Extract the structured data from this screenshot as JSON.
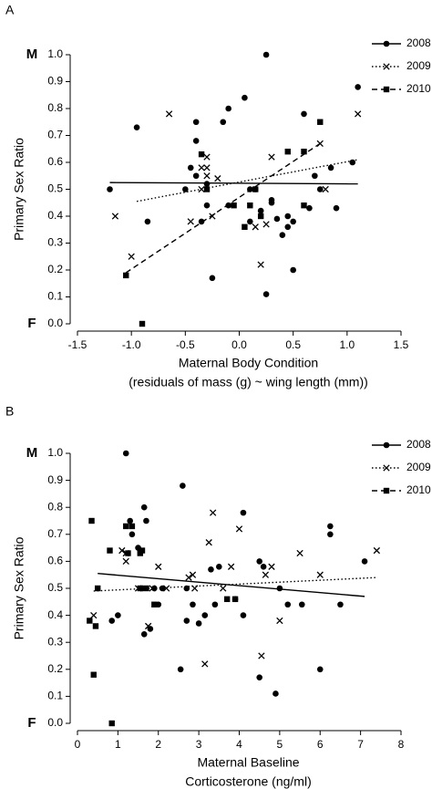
{
  "chart_data": [
    {
      "type": "scatter",
      "panel": "A",
      "ylabel": "Primary Sex Ratio",
      "xlabel": [
        "Maternal Body Condition",
        "(residuals of mass (g) ~ wing length (mm))"
      ],
      "top_label": "M",
      "bottom_label": "F",
      "legend": "top-right",
      "grid": false,
      "xlim": [
        -1.5,
        1.5
      ],
      "xticks": [
        -1.5,
        {
          "value": -1.0,
          "label": "-1.0"
        },
        -0.5,
        {
          "value": 0,
          "label": "0.0"
        },
        0.5,
        {
          "value": 1.0,
          "label": "1.0"
        },
        1.5
      ],
      "ylim": [
        0,
        1
      ],
      "yticks": [
        {
          "value": 0,
          "label": "0.0"
        },
        0.1,
        0.2,
        0.3,
        0.4,
        0.5,
        0.6,
        0.7,
        0.8,
        0.9,
        {
          "value": 1,
          "label": "1.0"
        }
      ],
      "series": [
        {
          "name": "2008",
          "color": "#000000",
          "marker": "circle",
          "dash": "solid",
          "x": [
            -1.2,
            -0.95,
            -0.85,
            -0.5,
            -0.45,
            -0.4,
            -0.4,
            -0.4,
            -0.35,
            -0.3,
            -0.3,
            -0.25,
            -0.15,
            -0.1,
            -0.1,
            0.05,
            0.1,
            0.15,
            0.2,
            0.25,
            0.25,
            0.3,
            0.3,
            0.35,
            0.4,
            0.45,
            0.45,
            0.5,
            0.5,
            0.6,
            0.65,
            0.7,
            0.75,
            0.85,
            0.9,
            1.05,
            1.1,
            0.1
          ],
          "y": [
            0.5,
            0.73,
            0.38,
            0.5,
            0.58,
            0.75,
            0.68,
            0.55,
            0.38,
            0.44,
            0.52,
            0.17,
            0.75,
            0.8,
            0.44,
            0.84,
            0.5,
            0.5,
            0.42,
            1.0,
            0.11,
            0.46,
            0.45,
            0.39,
            0.33,
            0.4,
            0.36,
            0.38,
            0.2,
            0.78,
            0.43,
            0.55,
            0.5,
            0.58,
            0.43,
            0.6,
            0.88,
            0.38
          ],
          "trend": {
            "x": [
              -1.2,
              1.1
            ],
            "y": [
              0.525,
              0.52
            ]
          }
        },
        {
          "name": "2009",
          "color": "#000000",
          "marker": "x",
          "dash": "dotted",
          "x": [
            -1.15,
            -1.0,
            -0.65,
            -0.3,
            -0.3,
            -0.25,
            -0.35,
            -0.45,
            -0.2,
            -0.35,
            0.15,
            0.2,
            0.25,
            0.3,
            0.75,
            0.8,
            1.1,
            -0.3
          ],
          "y": [
            0.4,
            0.25,
            0.78,
            0.62,
            0.58,
            0.4,
            0.58,
            0.38,
            0.54,
            0.5,
            0.36,
            0.22,
            0.37,
            0.62,
            0.67,
            0.5,
            0.78,
            0.55
          ],
          "trend": {
            "x": [
              -0.95,
              1.1
            ],
            "y": [
              0.455,
              0.61
            ]
          }
        },
        {
          "name": "2010",
          "color": "#000000",
          "marker": "square",
          "dash": "dashed",
          "x": [
            -1.05,
            -0.9,
            -0.35,
            -0.3,
            -0.05,
            0.05,
            0.1,
            0.15,
            0.2,
            0.45,
            0.6,
            0.6,
            0.75
          ],
          "y": [
            0.18,
            0.0,
            0.63,
            0.5,
            0.44,
            0.36,
            0.44,
            0.5,
            0.4,
            0.64,
            0.64,
            0.44,
            0.75
          ],
          "trend": {
            "x": [
              -1.05,
              0.75
            ],
            "y": [
              0.19,
              0.67
            ]
          }
        }
      ]
    },
    {
      "type": "scatter",
      "panel": "B",
      "ylabel": "Primary Sex Ratio",
      "xlabel": [
        "Maternal Baseline",
        "Corticosterone (ng/ml)"
      ],
      "top_label": "M",
      "bottom_label": "F",
      "legend": "top-right",
      "grid": false,
      "xlim": [
        0,
        8
      ],
      "xticks": [
        0,
        1,
        2,
        3,
        4,
        5,
        6,
        7,
        8
      ],
      "ylim": [
        0,
        1
      ],
      "yticks": [
        {
          "value": 0,
          "label": "0.0"
        },
        0.1,
        0.2,
        0.3,
        0.4,
        0.5,
        0.6,
        0.7,
        0.8,
        0.9,
        {
          "value": 1,
          "label": "1.0"
        }
      ],
      "series": [
        {
          "name": "2008",
          "color": "#000000",
          "marker": "circle",
          "dash": "solid",
          "x": [
            0.85,
            1.0,
            1.2,
            1.3,
            1.35,
            1.5,
            1.6,
            1.65,
            1.7,
            1.65,
            1.8,
            2.0,
            2.1,
            2.55,
            2.6,
            2.7,
            2.85,
            3.0,
            3.15,
            3.3,
            3.4,
            3.5,
            3.9,
            4.1,
            4.1,
            4.5,
            4.5,
            4.6,
            4.9,
            5.0,
            5.2,
            5.55,
            6.0,
            6.25,
            6.25,
            6.5,
            7.1,
            2.7,
            1.9
          ],
          "y": [
            0.38,
            0.4,
            1.0,
            0.75,
            0.7,
            0.65,
            0.5,
            0.8,
            0.75,
            0.33,
            0.35,
            0.44,
            0.5,
            0.2,
            0.88,
            0.38,
            0.44,
            0.37,
            0.4,
            0.57,
            0.44,
            0.58,
            0.46,
            0.78,
            0.4,
            0.6,
            0.17,
            0.58,
            0.11,
            0.5,
            0.44,
            0.44,
            0.2,
            0.73,
            0.7,
            0.44,
            0.6,
            0.5,
            0.5
          ],
          "trend": {
            "x": [
              0.5,
              7.1
            ],
            "y": [
              0.555,
              0.47
            ]
          }
        },
        {
          "name": "2009",
          "color": "#000000",
          "marker": "x",
          "dash": "dotted",
          "x": [
            0.4,
            1.1,
            1.2,
            1.2,
            1.5,
            1.75,
            2.0,
            2.2,
            2.75,
            2.85,
            2.9,
            3.15,
            3.25,
            3.35,
            3.6,
            3.8,
            4.0,
            4.55,
            4.65,
            4.8,
            5.0,
            5.5,
            6.0,
            7.4,
            1.85
          ],
          "y": [
            0.4,
            0.64,
            0.63,
            0.6,
            0.5,
            0.36,
            0.58,
            0.5,
            0.54,
            0.55,
            0.5,
            0.22,
            0.67,
            0.78,
            0.5,
            0.58,
            0.72,
            0.25,
            0.55,
            0.58,
            0.38,
            0.63,
            0.55,
            0.64,
            0.5
          ],
          "trend": {
            "x": [
              0.4,
              7.4
            ],
            "y": [
              0.49,
              0.54
            ]
          }
        },
        {
          "name": "2010",
          "color": "#000000",
          "marker": "square",
          "dash": "dashed",
          "x": [
            0.3,
            0.35,
            0.45,
            0.4,
            0.5,
            0.8,
            0.85,
            1.2,
            1.35,
            1.55,
            1.6,
            1.55,
            1.7,
            3.7,
            3.9,
            1.25,
            1.9
          ],
          "y": [
            0.38,
            0.75,
            0.36,
            0.18,
            0.5,
            0.64,
            0.0,
            0.73,
            0.73,
            0.63,
            0.64,
            0.5,
            0.5,
            0.46,
            0.46,
            0.63,
            0.44
          ]
        }
      ]
    }
  ]
}
